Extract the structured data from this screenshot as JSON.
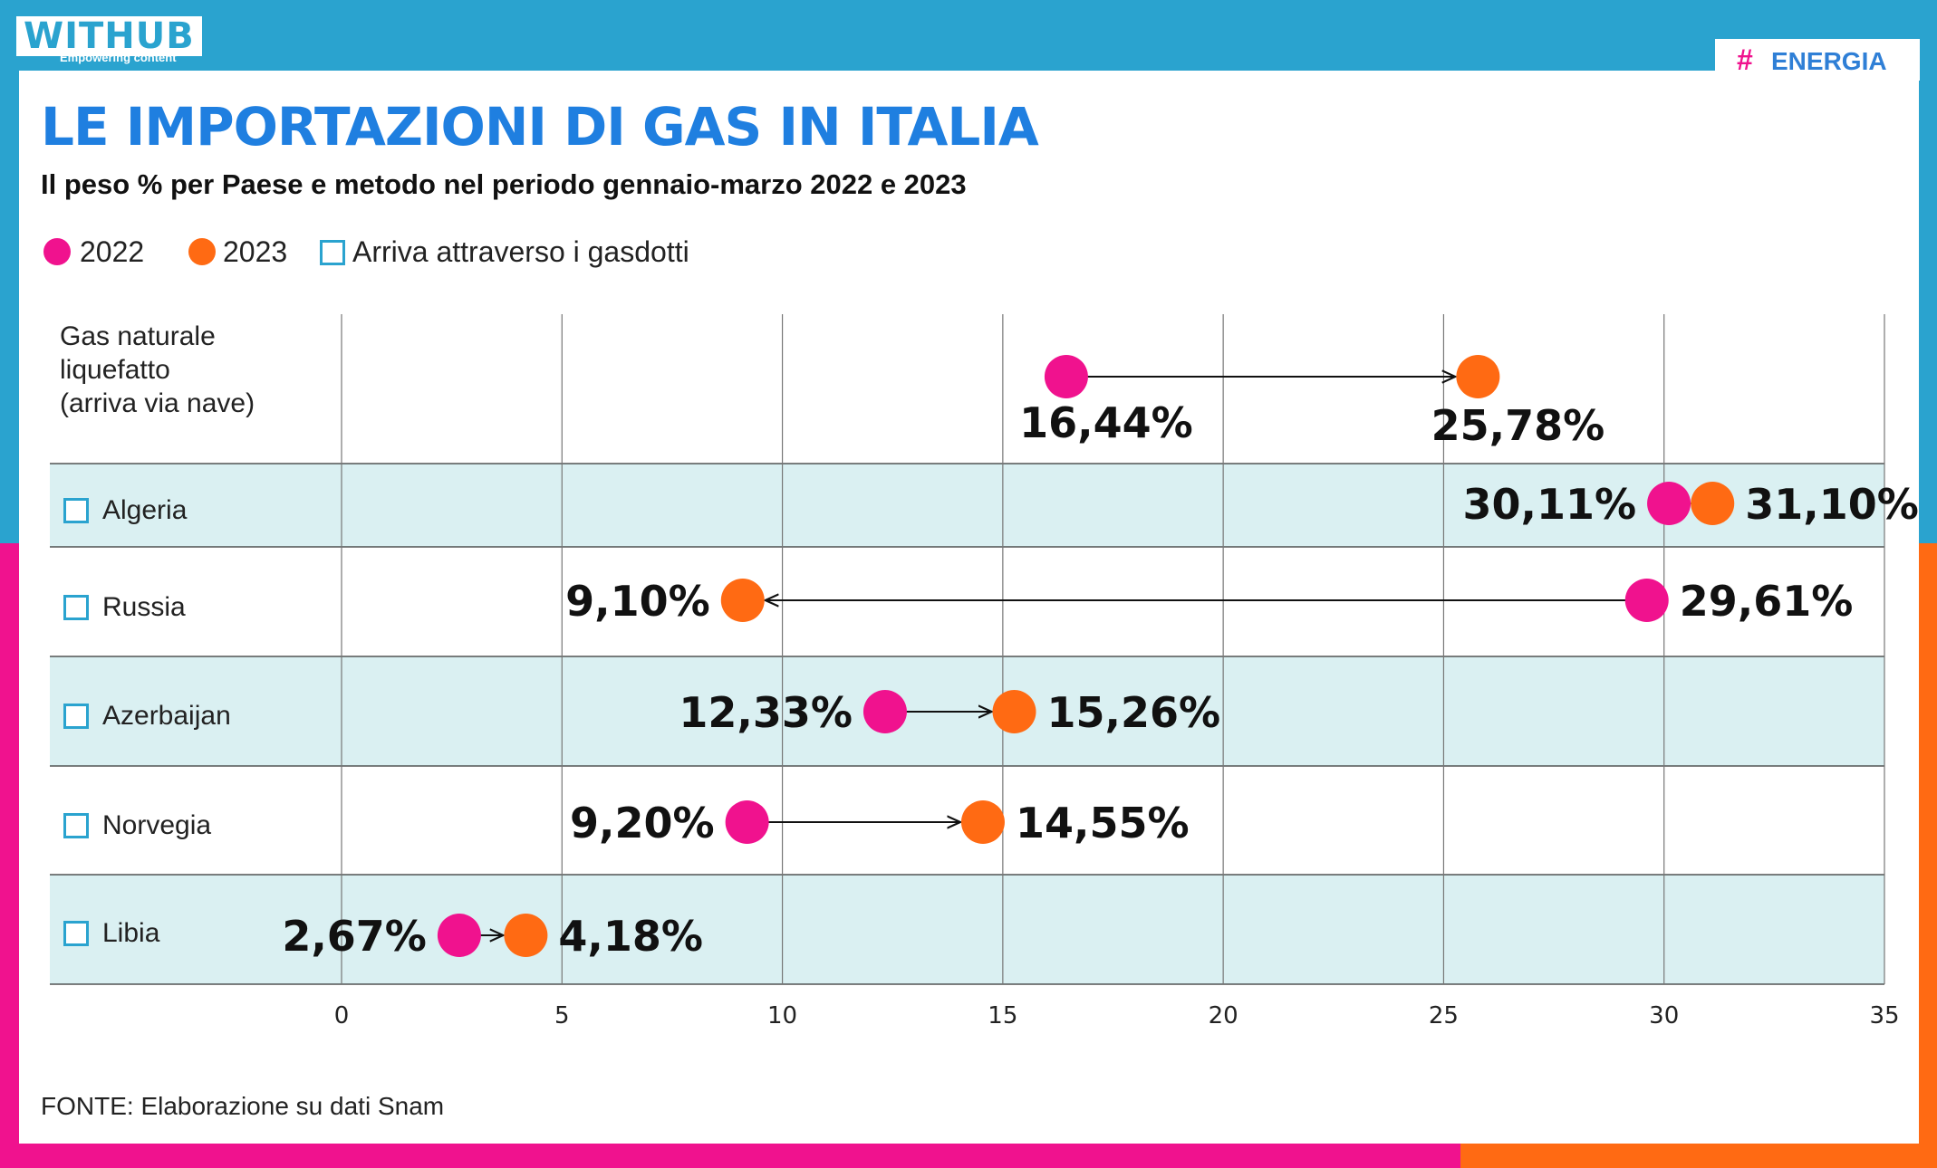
{
  "header": {
    "logo": "WITHUB",
    "logo_tagline": "Empowering content",
    "section_tag": "ENERGIA",
    "title": "LE IMPORTAZIONI DI GAS IN ITALIA",
    "subtitle": "Il peso % per Paese e metodo nel periodo gennaio-marzo 2022 e 2023"
  },
  "legend": {
    "y2022": "2022",
    "y2023": "2023",
    "pipeline": "Arriva attraverso i gasdotti"
  },
  "colors": {
    "y2022": "#f0128e",
    "y2023": "#ff6a13",
    "blue": "#2aa3cf",
    "title": "#1f7fe0",
    "shade": "#daf0f2"
  },
  "chart_data": {
    "type": "dumbbell",
    "xlim": [
      0,
      35
    ],
    "x_ticks": [
      0,
      5,
      10,
      15,
      20,
      25,
      30,
      35
    ],
    "categories": [
      "Gas naturale\nliquefatto\n(arriva via nave)",
      "Algeria",
      "Russia",
      "Azerbaijan",
      "Norvegia",
      "Libia"
    ],
    "pipeline": [
      false,
      true,
      true,
      true,
      true,
      true
    ],
    "series": [
      {
        "name": "2022",
        "values": [
          16.44,
          30.11,
          29.61,
          12.33,
          9.2,
          2.67
        ],
        "labels": [
          "16,44%",
          "30,11%",
          "29,61%",
          "12,33%",
          "9,20%",
          "2,67%"
        ]
      },
      {
        "name": "2023",
        "values": [
          25.78,
          31.1,
          9.1,
          15.26,
          14.55,
          4.18
        ],
        "labels": [
          "25,78%",
          "31,10%",
          "9,10%",
          "15,26%",
          "14,55%",
          "4,18%"
        ]
      }
    ],
    "grid": true
  },
  "source": "FONTE: Elaborazione su dati Snam"
}
